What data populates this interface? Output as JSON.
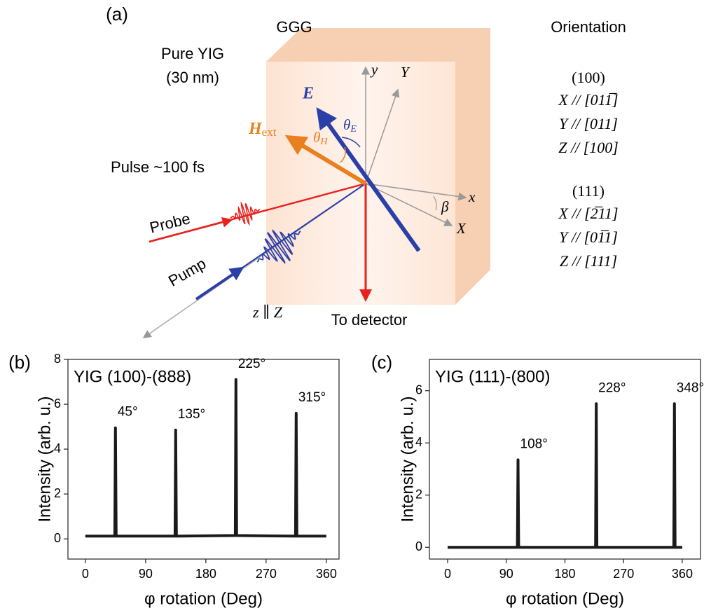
{
  "diagram": {
    "panel_label": "(a)",
    "substrate": "GGG",
    "film": "Pure YIG",
    "thickness": "(30 nm)",
    "pulse": "Pulse ~100 fs",
    "probe": "Probe",
    "pump": "Pump",
    "propagation": "z ∥ Z",
    "detector": "To detector",
    "efield": "E",
    "field": "H",
    "field_sub": "ext",
    "theta": "θ",
    "theta_H_sub": "H",
    "theta_E_sub": "E",
    "beta": "β",
    "axes": {
      "y": "y",
      "Y": "Y",
      "x": "x",
      "X": "X"
    }
  },
  "orientation": {
    "title": "Orientation",
    "groups": [
      {
        "name": "(100)",
        "lines": [
          "X // [011̅]",
          "Y // [011]",
          "Z // [100]"
        ]
      },
      {
        "name": "(111)",
        "lines": [
          "X // [2̅11]",
          "Y // [01̅1]",
          "Z // [111]"
        ]
      }
    ]
  },
  "chart_data": [
    {
      "type": "line",
      "panel_label": "(b)",
      "title": "YIG (100)-(888)",
      "x_label": "φ rotation (Deg)",
      "y_label": "Intensity (arb. u.)",
      "x": [
        0,
        44,
        45,
        46,
        134,
        135,
        136,
        224,
        225,
        226,
        314,
        315,
        316,
        360
      ],
      "series": [
        {
          "color": "#1a1a1a",
          "values": [
            0.12,
            0.12,
            4.95,
            0.12,
            0.12,
            4.85,
            0.12,
            0.15,
            7.1,
            0.15,
            0.12,
            5.6,
            0.12,
            0.12
          ]
        }
      ],
      "xlim": [
        -26,
        379
      ],
      "ylim": [
        -0.9,
        8
      ],
      "xticks": [
        0,
        90,
        180,
        270,
        360
      ],
      "yticks": [
        0,
        2,
        4,
        6,
        8
      ],
      "annotations": [
        {
          "text": "45°",
          "x": 45
        },
        {
          "text": "135°",
          "x": 135
        },
        {
          "text": "225°",
          "x": 225
        },
        {
          "text": "315°",
          "x": 315
        }
      ]
    },
    {
      "type": "line",
      "panel_label": "(c)",
      "title": "YIG (111)-(800)",
      "x_label": "φ rotation (Deg)",
      "y_label": "Intensity (arb. u.)",
      "x": [
        0,
        107,
        108,
        109,
        227,
        228,
        229,
        347,
        348,
        349,
        360
      ],
      "series": [
        {
          "color": "#1a1a1a",
          "values": [
            0,
            0,
            3.35,
            0,
            0,
            5.5,
            0,
            0,
            5.5,
            0,
            0
          ]
        }
      ],
      "xlim": [
        -28,
        388
      ],
      "ylim": [
        -0.45,
        7.2
      ],
      "xticks": [
        0,
        90,
        180,
        270,
        360
      ],
      "yticks": [
        0,
        2,
        4,
        6
      ],
      "annotations": [
        {
          "text": "108°",
          "x": 108
        },
        {
          "text": "228°",
          "x": 228
        },
        {
          "text": "348°",
          "x": 348
        }
      ]
    }
  ]
}
